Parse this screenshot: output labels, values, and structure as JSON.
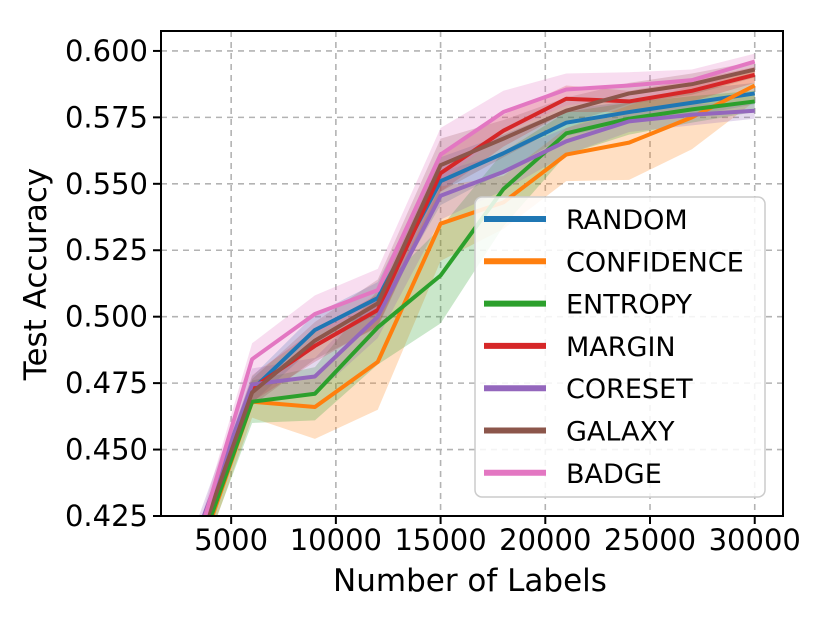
{
  "chart_data": {
    "type": "line",
    "title": "",
    "xlabel": "Number of Labels",
    "ylabel": "Test Accuracy",
    "xlim": [
      1650,
      31350
    ],
    "ylim": [
      0.425,
      0.6075
    ],
    "xticks": [
      5000,
      10000,
      15000,
      20000,
      25000,
      30000
    ],
    "xtick_labels": [
      "5000",
      "10000",
      "15000",
      "20000",
      "25000",
      "30000"
    ],
    "yticks": [
      0.425,
      0.45,
      0.475,
      0.5,
      0.525,
      0.55,
      0.575,
      0.6
    ],
    "ytick_labels": [
      "0.425",
      "0.450",
      "0.475",
      "0.500",
      "0.525",
      "0.550",
      "0.575",
      "0.600"
    ],
    "grid": true,
    "grid_style": "dashed",
    "grid_color": "#b3b3b3",
    "legend_position": "center-right-inside",
    "band_alpha": 0.25,
    "line_width": 4,
    "x": [
      3000,
      6000,
      9000,
      12000,
      15000,
      18000,
      21000,
      24000,
      27000,
      30000
    ],
    "series": [
      {
        "name": "RANDOM",
        "color": "#1f77b4",
        "values": [
          0.408,
          0.4725,
          0.495,
          0.507,
          0.551,
          0.5615,
          0.573,
          0.577,
          0.5805,
          0.584
        ],
        "band": [
          0.004,
          0.005,
          0.006,
          0.006,
          0.009,
          0.007,
          0.005,
          0.004,
          0.005,
          0.004
        ]
      },
      {
        "name": "CONFIDENCE",
        "color": "#ff7f0e",
        "values": [
          0.4,
          0.468,
          0.466,
          0.483,
          0.535,
          0.543,
          0.561,
          0.5655,
          0.575,
          0.587
        ],
        "band": [
          0.005,
          0.006,
          0.012,
          0.018,
          0.014,
          0.01,
          0.01,
          0.014,
          0.012,
          0.006
        ]
      },
      {
        "name": "ENTROPY",
        "color": "#2ca02c",
        "values": [
          0.402,
          0.468,
          0.471,
          0.496,
          0.5155,
          0.548,
          0.569,
          0.5745,
          0.578,
          0.581
        ],
        "band": [
          0.005,
          0.008,
          0.01,
          0.014,
          0.018,
          0.014,
          0.008,
          0.006,
          0.005,
          0.004
        ]
      },
      {
        "name": "MARGIN",
        "color": "#d62728",
        "values": [
          0.405,
          0.473,
          0.489,
          0.5025,
          0.554,
          0.57,
          0.582,
          0.581,
          0.585,
          0.591
        ],
        "band": [
          0.004,
          0.005,
          0.006,
          0.006,
          0.007,
          0.006,
          0.005,
          0.004,
          0.004,
          0.003
        ]
      },
      {
        "name": "CORESET",
        "color": "#9467bd",
        "values": [
          0.41,
          0.4745,
          0.4775,
          0.5,
          0.5455,
          0.5545,
          0.566,
          0.5735,
          0.576,
          0.5775
        ],
        "band": [
          0.005,
          0.006,
          0.007,
          0.008,
          0.009,
          0.007,
          0.005,
          0.004,
          0.004,
          0.003
        ]
      },
      {
        "name": "GALAXY",
        "color": "#8c564b",
        "values": [
          0.405,
          0.4715,
          0.491,
          0.505,
          0.557,
          0.567,
          0.5775,
          0.584,
          0.5875,
          0.593
        ],
        "band": [
          0.004,
          0.005,
          0.007,
          0.009,
          0.01,
          0.007,
          0.005,
          0.004,
          0.004,
          0.003
        ]
      },
      {
        "name": "BADGE",
        "color": "#e377c2",
        "values": [
          0.405,
          0.484,
          0.501,
          0.51,
          0.561,
          0.577,
          0.5855,
          0.587,
          0.589,
          0.596
        ],
        "band": [
          0.004,
          0.006,
          0.007,
          0.008,
          0.01,
          0.008,
          0.006,
          0.005,
          0.004,
          0.003
        ]
      }
    ],
    "legend_entries": [
      "RANDOM",
      "CONFIDENCE",
      "ENTROPY",
      "MARGIN",
      "CORESET",
      "GALAXY",
      "BADGE"
    ]
  }
}
